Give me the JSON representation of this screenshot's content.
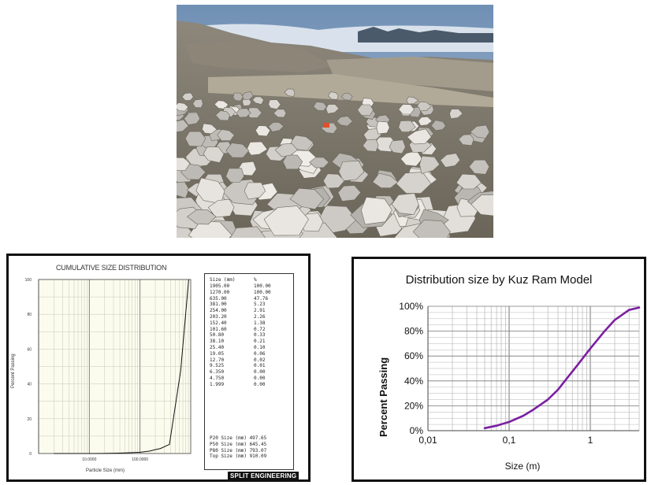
{
  "photo": {
    "description_icon": "quarry-rock-pile-photo"
  },
  "left_chart": {
    "title": "CUMULATIVE SIZE DISTRIBUTION",
    "ylabel": "Percent Passing",
    "xlabel": "Particle Size (mm)",
    "yticks": [
      "100",
      "80",
      "60",
      "40",
      "20",
      "0"
    ],
    "xticks": [
      "10.0000",
      "100.0000"
    ],
    "table_header": [
      "Size (mm)",
      "%"
    ],
    "table_rows": [
      [
        "1905.00",
        "100.00"
      ],
      [
        "1270.00",
        "100.00"
      ],
      [
        "635.00",
        "47.76"
      ],
      [
        "381.00",
        "5.23"
      ],
      [
        "254.00",
        "2.91"
      ],
      [
        "203.20",
        "2.26"
      ],
      [
        "152.40",
        "1.38"
      ],
      [
        "101.60",
        "0.72"
      ],
      [
        "50.80",
        "0.33"
      ],
      [
        "38.10",
        "0.21"
      ],
      [
        "25.40",
        "0.10"
      ],
      [
        "19.05",
        "0.06"
      ],
      [
        "12.70",
        "0.02"
      ],
      [
        "9.525",
        "0.01"
      ],
      [
        "6.350",
        "0.00"
      ],
      [
        "4.750",
        "0.00"
      ],
      [
        "1.999",
        "0.00"
      ]
    ],
    "summary": [
      "P20 Size (mm) 497.65",
      "P50 Size (mm) 645.45",
      "P80 Size (mm) 793.07",
      "Top Size (mm) 910.09"
    ],
    "logo": "SPLIT ENGINEERING"
  },
  "chart_data": [
    {
      "type": "line",
      "title": "CUMULATIVE SIZE DISTRIBUTION",
      "xlabel": "Particle Size (mm)",
      "ylabel": "Percent Passing",
      "x_scale": "log",
      "xlim": [
        1,
        1000
      ],
      "ylim": [
        0,
        100
      ],
      "grid": true,
      "series": [
        {
          "x": [
            1.999,
            4.75,
            6.35,
            9.525,
            12.7,
            19.05,
            25.4,
            38.1,
            50.8,
            101.6,
            152.4,
            203.2,
            254.0,
            381.0,
            635.0,
            910.09
          ],
          "y": [
            0.0,
            0.0,
            0.0,
            0.01,
            0.02,
            0.06,
            0.1,
            0.21,
            0.33,
            0.72,
            1.38,
            2.26,
            2.91,
            5.23,
            47.76,
            100.0
          ]
        }
      ]
    },
    {
      "type": "line",
      "title": "Distribution size by Kuz Ram Model",
      "xlabel": "Size (m)",
      "ylabel": "Percent Passing",
      "x_scale": "log",
      "xlim": [
        0.01,
        4
      ],
      "ylim": [
        0,
        100
      ],
      "xticks": [
        "0,01",
        "0,1",
        "1"
      ],
      "yticks": [
        "0%",
        "20%",
        "40%",
        "60%",
        "80%",
        "100%"
      ],
      "grid": true,
      "color": "#7b1fa2",
      "series": [
        {
          "x": [
            0.05,
            0.07,
            0.1,
            0.15,
            0.2,
            0.3,
            0.4,
            0.5,
            0.7,
            1.0,
            1.5,
            2.0,
            3.0,
            4.0
          ],
          "y": [
            2,
            4,
            7,
            12,
            17,
            25,
            33,
            41,
            53,
            66,
            80,
            89,
            97,
            99
          ]
        }
      ]
    }
  ]
}
